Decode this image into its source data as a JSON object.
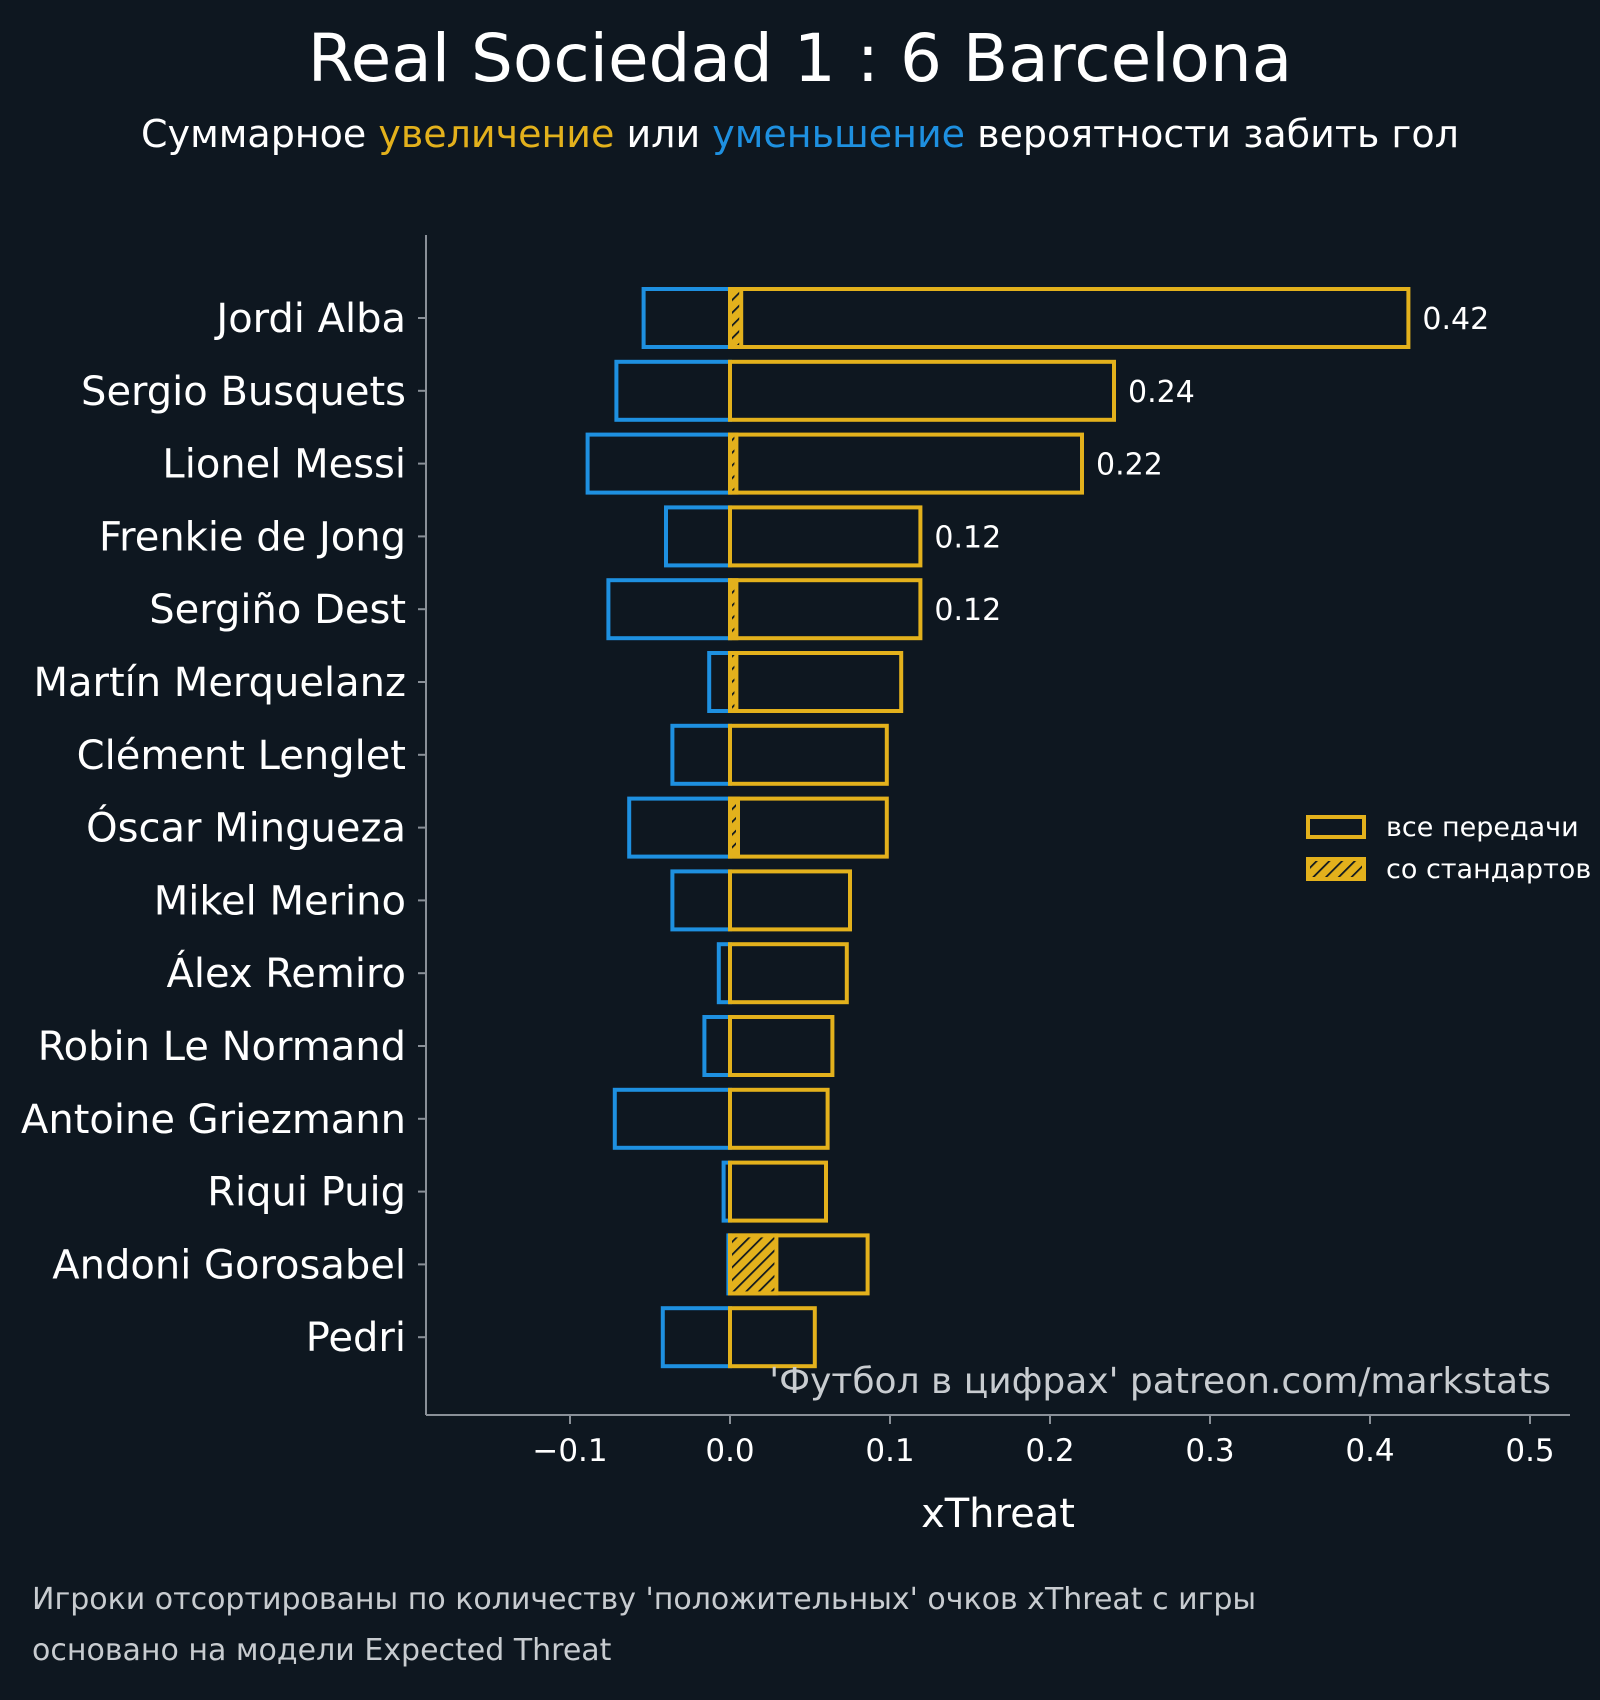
{
  "title": "Real Sociedad 1 : 6 Barcelona",
  "subtitle": {
    "prefix": "Суммарное ",
    "positive_word": "увеличение",
    "middle": " или ",
    "negative_word": "уменьшение",
    "suffix": " вероятности забить гол"
  },
  "colors": {
    "background": "#0e1720",
    "positive": "#e3b11c",
    "negative": "#1e90e0",
    "axis": "#8a9098",
    "text": "#ffffff"
  },
  "watermark": "'Футбол в цифрах' patreon.com/markstats",
  "footnotes": [
    "Игроки отсортированы по количеству 'положительных' очков xThreat с игры",
    "основано на модели Expected Threat"
  ],
  "chart_data": {
    "type": "bar",
    "orientation": "horizontal",
    "xlabel": "xThreat",
    "xlim": [
      -0.19,
      0.525
    ],
    "xticks": [
      {
        "value": -0.1,
        "label": "−0.1"
      },
      {
        "value": 0.0,
        "label": "0.0"
      },
      {
        "value": 0.1,
        "label": "0.1"
      },
      {
        "value": 0.2,
        "label": "0.2"
      },
      {
        "value": 0.3,
        "label": "0.3"
      },
      {
        "value": 0.4,
        "label": "0.4"
      },
      {
        "value": 0.5,
        "label": "0.5"
      }
    ],
    "legend": {
      "position": "right",
      "entries": [
        {
          "label": "все передачи",
          "style": "outline"
        },
        {
          "label": "со стандартов",
          "style": "hatched"
        }
      ]
    },
    "categories": [
      "Jordi Alba",
      "Sergio Busquets",
      "Lionel Messi",
      "Frenkie de Jong",
      "Sergiño Dest",
      "Martín Merquelanz",
      "Clément Lenglet",
      "Óscar Mingueza",
      "Mikel Merino",
      "Álex Remiro",
      "Robin Le Normand",
      "Antoine Griezmann",
      "Riqui Puig",
      "Andoni Gorosabel",
      "Pedri"
    ],
    "series": [
      {
        "name": "положительные (все передачи)",
        "values": [
          0.424,
          0.24,
          0.22,
          0.119,
          0.119,
          0.107,
          0.098,
          0.098,
          0.075,
          0.073,
          0.064,
          0.061,
          0.06,
          0.086,
          0.053
        ]
      },
      {
        "name": "отрицательные",
        "values": [
          -0.054,
          -0.071,
          -0.089,
          -0.04,
          -0.076,
          -0.013,
          -0.036,
          -0.063,
          -0.036,
          -0.007,
          -0.016,
          -0.072,
          -0.004,
          -0.001,
          -0.042
        ]
      },
      {
        "name": "со стандартов",
        "values": [
          0.007,
          0.0,
          0.004,
          0.0,
          0.004,
          0.004,
          0.0,
          0.005,
          0.0,
          0.0,
          0.0,
          0.0,
          0.0,
          0.029,
          0.0
        ]
      }
    ],
    "value_labels": [
      "0.42",
      "0.24",
      "0.22",
      "0.12",
      "0.12",
      "",
      "",
      "",
      "",
      "",
      "",
      "",
      "",
      "",
      ""
    ]
  }
}
